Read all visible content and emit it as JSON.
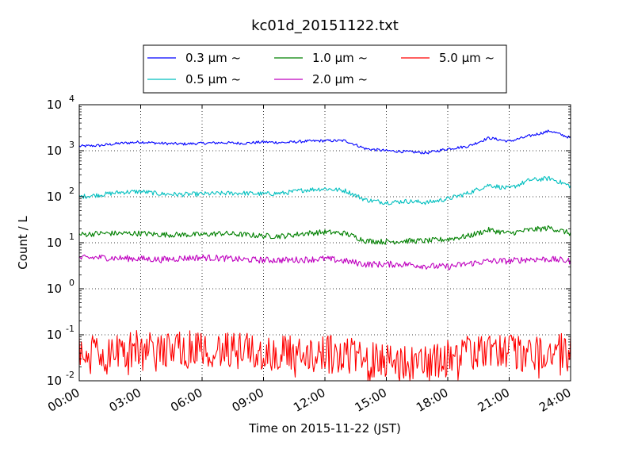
{
  "chart_data": {
    "type": "line",
    "title": "kc01d_20151122.txt",
    "xlabel": "Time on 2015-11-22 (JST)",
    "ylabel": "Count / L",
    "yscale": "log",
    "ylim": [
      0.01,
      10000
    ],
    "xlim": [
      "2015-11-22 00:00",
      "2015-11-23 00:00"
    ],
    "x_ticks": [
      "00:00",
      "03:00",
      "06:00",
      "09:00",
      "12:00",
      "15:00",
      "18:00",
      "21:00",
      "24:00"
    ],
    "y_ticks": [
      {
        "base": "10",
        "exp": "-2"
      },
      {
        "base": "10",
        "exp": "-1"
      },
      {
        "base": "10",
        "exp": "0"
      },
      {
        "base": "10",
        "exp": "1"
      },
      {
        "base": "10",
        "exp": "2"
      },
      {
        "base": "10",
        "exp": "3"
      },
      {
        "base": "10",
        "exp": "4"
      }
    ],
    "grid": true,
    "legend_position": "top-center",
    "x": [
      "00:00",
      "01:00",
      "02:00",
      "03:00",
      "04:00",
      "05:00",
      "06:00",
      "07:00",
      "08:00",
      "09:00",
      "10:00",
      "11:00",
      "12:00",
      "13:00",
      "14:00",
      "15:00",
      "16:00",
      "17:00",
      "18:00",
      "19:00",
      "20:00",
      "21:00",
      "22:00",
      "23:00",
      "24:00"
    ],
    "series": [
      {
        "name": "0.3 μm ~",
        "color": "#0000ff",
        "noise": 0.03,
        "values": [
          1250,
          1300,
          1450,
          1550,
          1450,
          1400,
          1450,
          1500,
          1450,
          1550,
          1500,
          1600,
          1650,
          1650,
          1100,
          1000,
          950,
          900,
          1100,
          1250,
          1900,
          1600,
          2100,
          2700,
          1900
        ]
      },
      {
        "name": "0.5 μm ~",
        "color": "#00bfbf",
        "noise": 0.05,
        "values": [
          100,
          110,
          125,
          130,
          115,
          112,
          115,
          118,
          120,
          115,
          120,
          140,
          150,
          135,
          85,
          75,
          80,
          75,
          90,
          120,
          180,
          150,
          230,
          250,
          170
        ]
      },
      {
        "name": "1.0 μm ~",
        "color": "#008000",
        "noise": 0.06,
        "values": [
          15,
          16,
          16,
          16,
          15,
          15,
          15,
          16,
          15,
          14,
          14,
          16,
          17,
          16,
          11,
          10.5,
          11,
          11,
          12,
          14,
          19,
          16,
          19,
          21,
          16
        ]
      },
      {
        "name": "2.0 μm ~",
        "color": "#bf00bf",
        "noise": 0.07,
        "values": [
          4.6,
          4.8,
          4.6,
          4.5,
          4.3,
          4.6,
          4.8,
          4.6,
          4.3,
          4.2,
          4.2,
          4.3,
          4.5,
          4.0,
          3.4,
          3.4,
          3.4,
          3.1,
          3.0,
          3.5,
          4.0,
          4.0,
          4.4,
          4.4,
          4.0
        ]
      },
      {
        "name": "5.0 μm ~",
        "color": "#ff0000",
        "noise": 0.4,
        "values": [
          0.05,
          0.045,
          0.05,
          0.05,
          0.045,
          0.05,
          0.055,
          0.045,
          0.045,
          0.04,
          0.04,
          0.04,
          0.045,
          0.035,
          0.03,
          0.03,
          0.025,
          0.025,
          0.03,
          0.04,
          0.04,
          0.045,
          0.04,
          0.04,
          0.045
        ]
      }
    ]
  }
}
